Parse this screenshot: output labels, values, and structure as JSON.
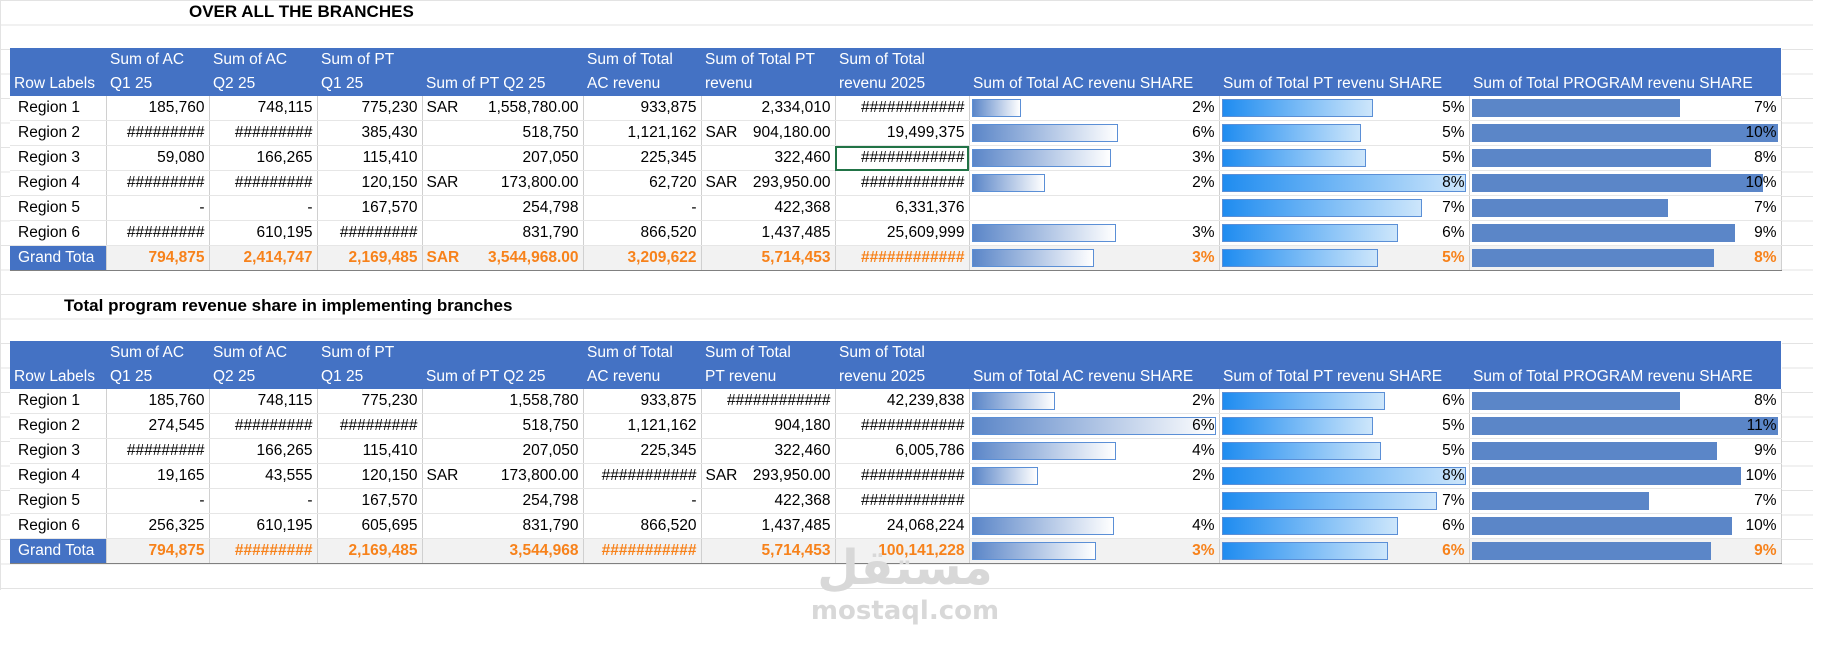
{
  "titles": {
    "top": "OVER ALL THE BRANCHES",
    "bottom": "Total program revenue share in implementing branches"
  },
  "header_row1": [
    "",
    "Sum of AC",
    "Sum of AC",
    "Sum of PT",
    "",
    "Sum of Total",
    "Sum of Total  PT",
    "Sum of Total",
    "",
    "",
    ""
  ],
  "header_row2": [
    "Row Labels",
    "Q1 25",
    "Q2 25",
    "Q1 25",
    "Sum of PT Q2 25",
    "AC revenu",
    "revenu",
    "revenu 2025",
    "Sum of  Total AC revenu SHARE",
    "Sum of  Total PT revenu SHARE",
    "Sum of  Total PROGRAM revenu SHARE"
  ],
  "header2_row1": [
    "",
    "Sum of AC",
    "Sum of AC",
    "Sum of PT",
    "",
    "Sum of Total",
    "Sum of Total",
    "Sum of Total",
    "",
    "",
    ""
  ],
  "header2_row2": [
    "Row Labels",
    "Q1 25",
    "Q2 25",
    "Q1 25",
    "Sum of PT Q2 25",
    "AC revenu",
    "PT revenu",
    "revenu 2025",
    "Sum of  Total AC revenu SHARE",
    "Sum of  Total PT revenu SHARE",
    "Sum of  Total PROGRAM revenu SHARE"
  ],
  "table1": {
    "rows": [
      {
        "label": "Region 1",
        "c1": "185,760",
        "c2": "748,115",
        "c3": "775,230",
        "c4_cur": "SAR",
        "c4": "1,558,780.00",
        "c5": "933,875",
        "c6_cur": "",
        "c6": "2,334,010",
        "c7": "############",
        "ac": "2%",
        "ac_v": 0.2,
        "pt": "5%",
        "pt_v": 0.62,
        "prog": "7%",
        "prog_v": 0.68
      },
      {
        "label": "Region 2",
        "c1": "#########",
        "c2": "#########",
        "c3": "385,430",
        "c4_cur": "",
        "c4": "518,750",
        "c5": "1,121,162",
        "c6_cur": "SAR",
        "c6": "904,180.00",
        "c7": "19,499,375",
        "ac": "6%",
        "ac_v": 0.6,
        "pt": "5%",
        "pt_v": 0.57,
        "prog": "10%",
        "prog_v": 1.0
      },
      {
        "label": "Region 3",
        "c1": "59,080",
        "c2": "166,265",
        "c3": "115,410",
        "c4_cur": "",
        "c4": "207,050",
        "c5": "225,345",
        "c6_cur": "",
        "c6": "322,460",
        "c7": "############",
        "ac": "3%",
        "ac_v": 0.57,
        "pt": "5%",
        "pt_v": 0.59,
        "prog": "8%",
        "prog_v": 0.78
      },
      {
        "label": "Region 4",
        "c1": "#########",
        "c2": "#########",
        "c3": "120,150",
        "c4_cur": "SAR",
        "c4": "173,800.00",
        "c5": "62,720",
        "c6_cur": "SAR",
        "c6": "293,950.00",
        "c7": "############",
        "ac": "2%",
        "ac_v": 0.3,
        "pt": "8%",
        "pt_v": 1.0,
        "prog": "10%",
        "prog_v": 0.95
      },
      {
        "label": "Region 5",
        "c1": "-",
        "c2": "-",
        "c3": "167,570",
        "c4_cur": "",
        "c4": "254,798",
        "c5": "-",
        "c6_cur": "",
        "c6": "422,368",
        "c7": "6,331,376",
        "ac": "",
        "ac_v": 0,
        "pt": "7%",
        "pt_v": 0.82,
        "prog": "7%",
        "prog_v": 0.64
      },
      {
        "label": "Region 6",
        "c1": "#########",
        "c2": "610,195",
        "c3": "#########",
        "c4_cur": "",
        "c4": "831,790",
        "c5": "866,520",
        "c6_cur": "",
        "c6": "1,437,485",
        "c7": "25,609,999",
        "ac": "3%",
        "ac_v": 0.59,
        "pt": "6%",
        "pt_v": 0.72,
        "prog": "9%",
        "prog_v": 0.86
      }
    ],
    "grand": {
      "label": "Grand Tota",
      "c1": "794,875",
      "c2": "2,414,747",
      "c3": "2,169,485",
      "c4_cur": "SAR",
      "c4": "3,544,968.00",
      "c5": "3,209,622",
      "c6_cur": "",
      "c6": "5,714,453",
      "c7": "############",
      "ac": "3%",
      "ac_v": 0.5,
      "pt": "5%",
      "pt_v": 0.64,
      "prog": "8%",
      "prog_v": 0.79
    }
  },
  "table2": {
    "rows": [
      {
        "label": "Region 1",
        "c1": "185,760",
        "c2": "748,115",
        "c3": "775,230",
        "c4_cur": "",
        "c4": "1,558,780",
        "c5": "933,875",
        "c6_cur": "",
        "c6": "############",
        "c7": "42,239,838",
        "ac": "2%",
        "ac_v": 0.34,
        "pt": "6%",
        "pt_v": 0.67,
        "prog": "8%",
        "prog_v": 0.68
      },
      {
        "label": "Region 2",
        "c1": "274,545",
        "c2": "#########",
        "c3": "#########",
        "c4_cur": "",
        "c4": "518,750",
        "c5": "1,121,162",
        "c6_cur": "",
        "c6": "904,180",
        "c7": "############",
        "ac": "6%",
        "ac_v": 1.0,
        "pt": "5%",
        "pt_v": 0.62,
        "prog": "11%",
        "prog_v": 1.0
      },
      {
        "label": "Region 3",
        "c1": "#########",
        "c2": "166,265",
        "c3": "115,410",
        "c4_cur": "",
        "c4": "207,050",
        "c5": "225,345",
        "c6_cur": "",
        "c6": "322,460",
        "c7": "6,005,786",
        "ac": "4%",
        "ac_v": 0.59,
        "pt": "5%",
        "pt_v": 0.65,
        "prog": "9%",
        "prog_v": 0.8
      },
      {
        "label": "Region 4",
        "c1": "19,165",
        "c2": "43,555",
        "c3": "120,150",
        "c4_cur": "SAR",
        "c4": "173,800.00",
        "c5": "###########",
        "c6_cur": "SAR",
        "c6": "293,950.00",
        "c7": "############",
        "ac": "2%",
        "ac_v": 0.27,
        "pt": "8%",
        "pt_v": 1.0,
        "prog": "10%",
        "prog_v": 0.88
      },
      {
        "label": "Region 5",
        "c1": "-",
        "c2": "-",
        "c3": "167,570",
        "c4_cur": "",
        "c4": "254,798",
        "c5": "-",
        "c6_cur": "",
        "c6": "422,368",
        "c7": "############",
        "ac": "",
        "ac_v": 0,
        "pt": "7%",
        "pt_v": 0.88,
        "prog": "7%",
        "prog_v": 0.58
      },
      {
        "label": "Region 6",
        "c1": "256,325",
        "c2": "610,195",
        "c3": "605,695",
        "c4_cur": "",
        "c4": "831,790",
        "c5": "866,520",
        "c6_cur": "",
        "c6": "1,437,485",
        "c7": "24,068,224",
        "ac": "4%",
        "ac_v": 0.58,
        "pt": "6%",
        "pt_v": 0.72,
        "prog": "10%",
        "prog_v": 0.85
      }
    ],
    "grand": {
      "label": "Grand Tota",
      "c1": "794,875",
      "c2": "#########",
      "c3": "2,169,485",
      "c4_cur": "",
      "c4": "3,544,968",
      "c5": "###########",
      "c6_cur": "",
      "c6": "5,714,453",
      "c7": "100,141,228",
      "ac": "3%",
      "ac_v": 0.51,
      "pt": "6%",
      "pt_v": 0.68,
      "prog": "9%",
      "prog_v": 0.78
    }
  },
  "watermark": {
    "logo": "مستقل",
    "url": "mostaql.com"
  },
  "colors": {
    "header": "#4472c4",
    "grand_text": "#f7821b",
    "grand_bg": "#f2f2f2"
  }
}
